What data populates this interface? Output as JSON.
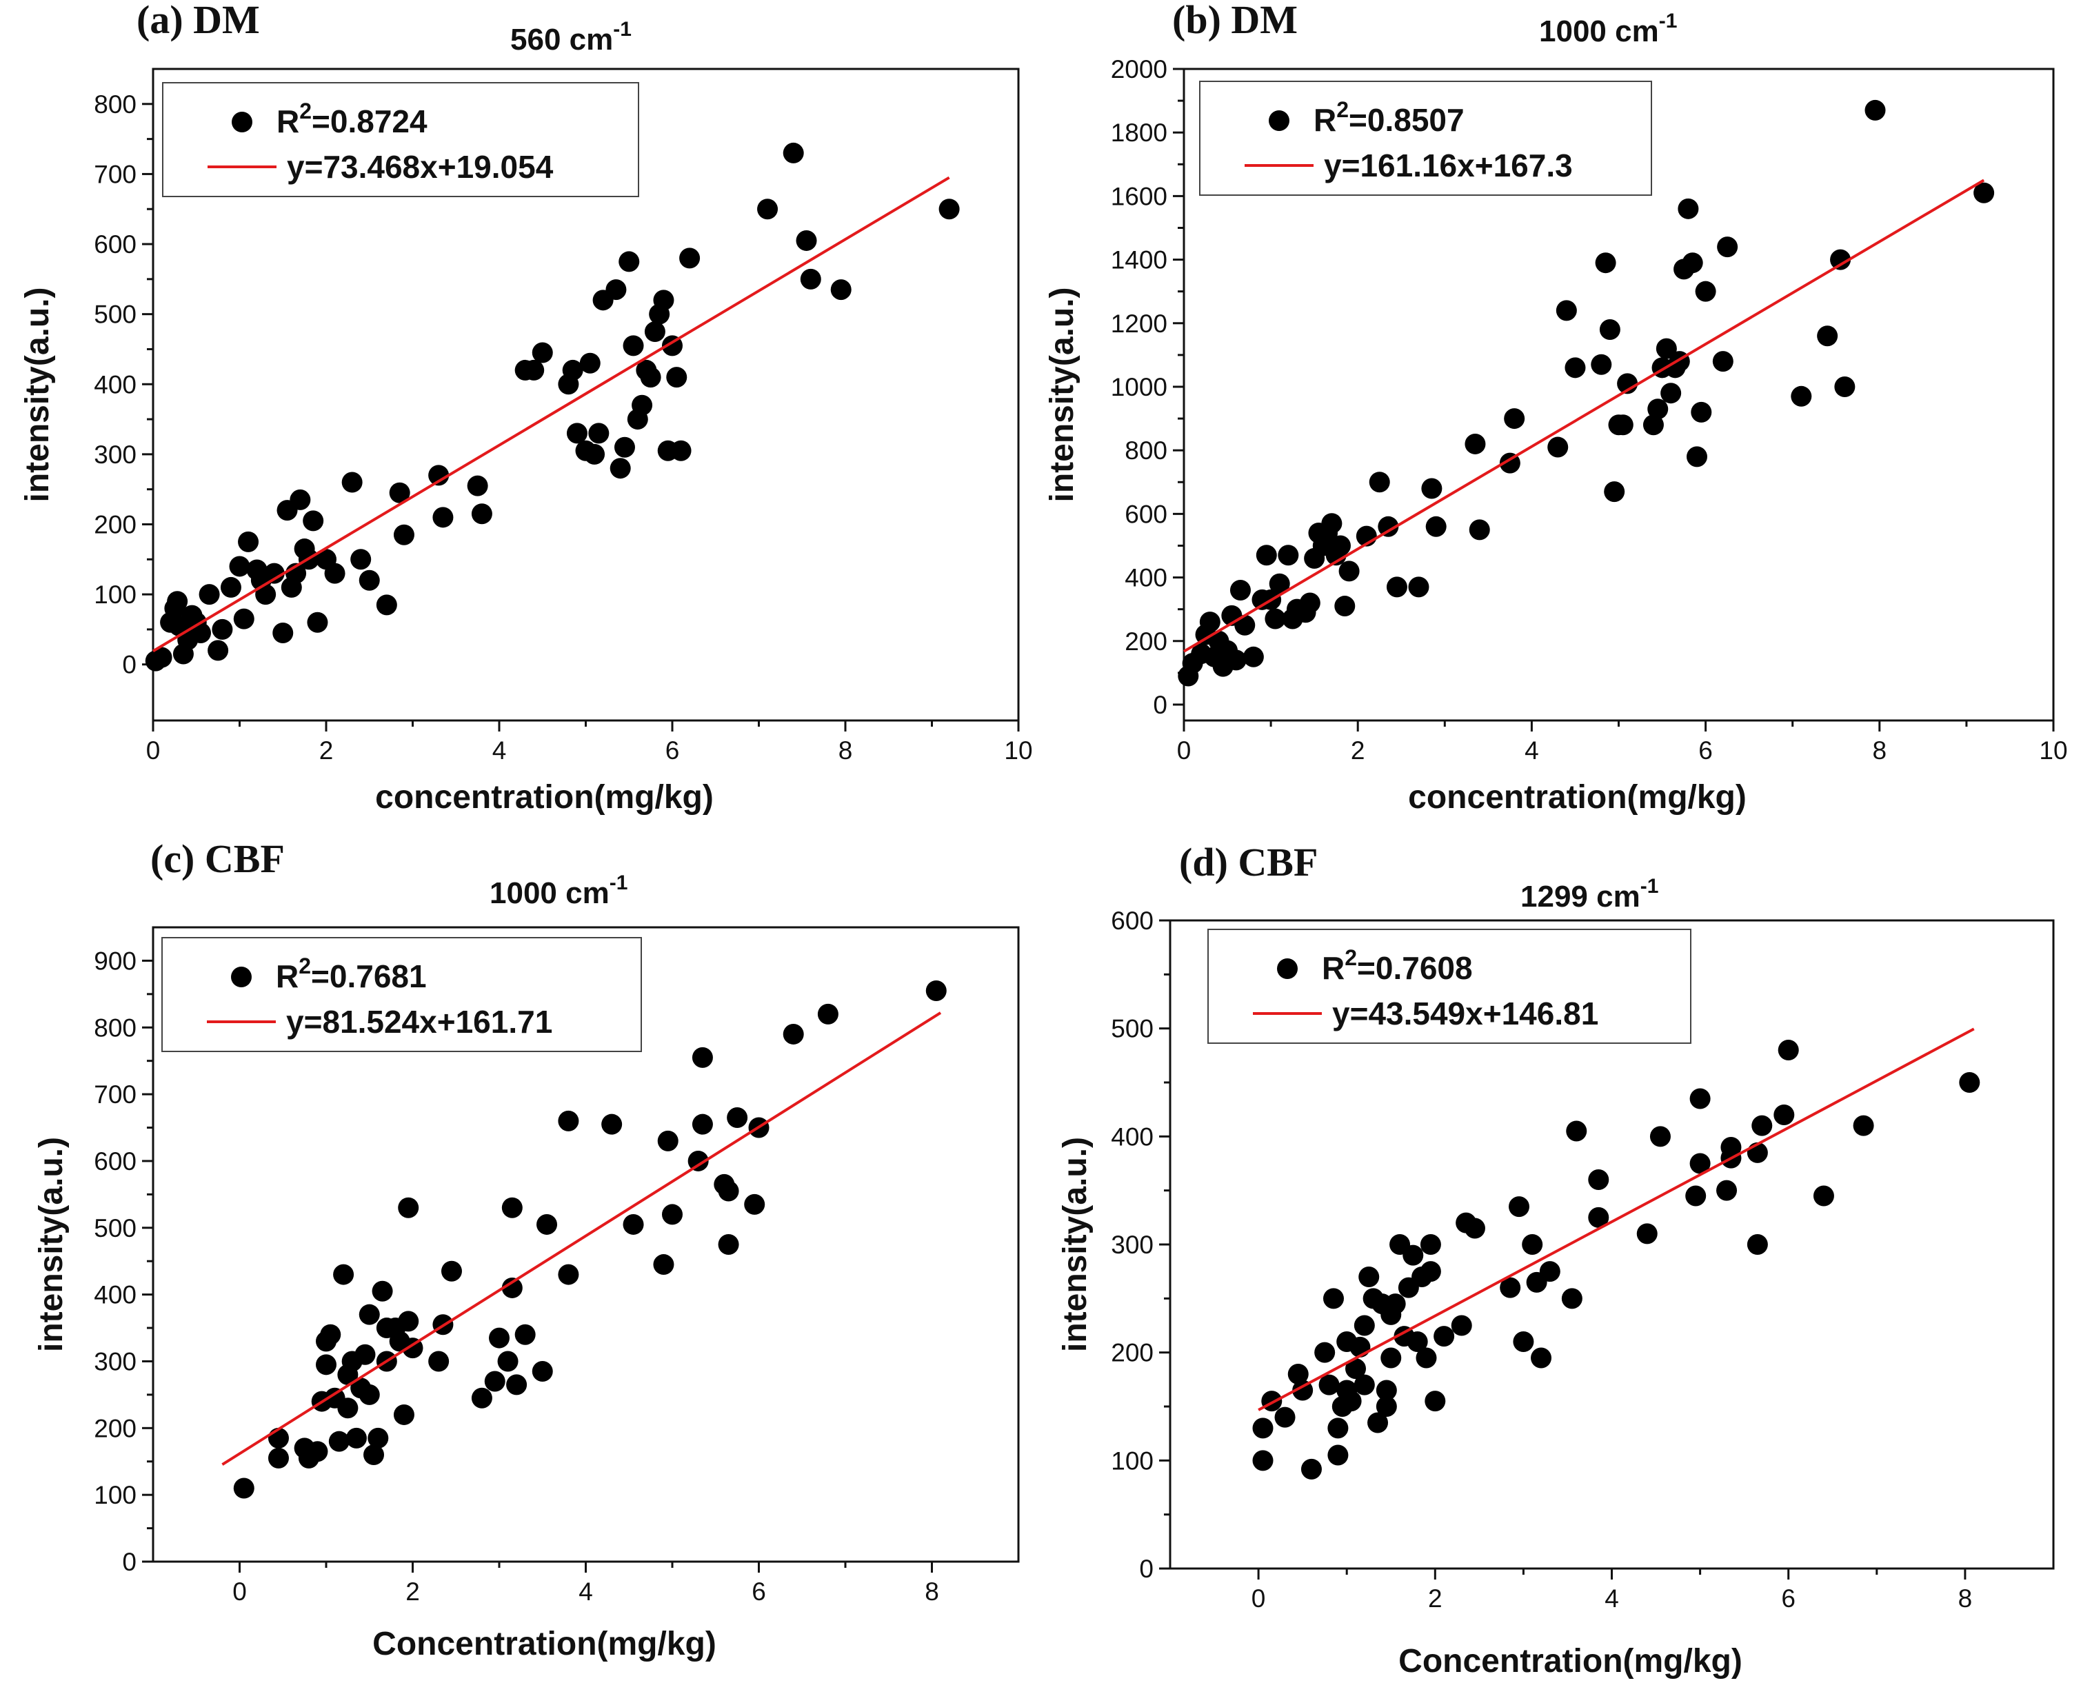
{
  "colors": {
    "points": "#000000",
    "fit_line": "#e31a1c",
    "axes": "#111111",
    "background": "#ffffff"
  },
  "chart_data": [
    {
      "type": "scatter",
      "panel_label": "(a) DM",
      "wavenumber_text": "560 cm",
      "wavenumber_exp": "-1",
      "xlabel": "concentration(mg/kg)",
      "ylabel": "intensity(a.u.)",
      "xlim": [
        0,
        10
      ],
      "ylim": [
        -80,
        850
      ],
      "xticks": [
        0,
        2,
        4,
        6,
        8,
        10
      ],
      "yticks": [
        0,
        100,
        200,
        300,
        400,
        500,
        600,
        700,
        800
      ],
      "legend_position": "top-left",
      "legend": {
        "r2_prefix": "R",
        "r2_exp": "2",
        "r2_value": "=0.8724",
        "equation": "y=73.468x+19.054"
      },
      "fit": {
        "slope": 73.468,
        "intercept": 19.054,
        "x_range": [
          0,
          9.2
        ]
      },
      "points": [
        [
          0.03,
          5
        ],
        [
          0.1,
          10
        ],
        [
          0.2,
          60
        ],
        [
          0.25,
          80
        ],
        [
          0.28,
          90
        ],
        [
          0.3,
          55
        ],
        [
          0.35,
          15
        ],
        [
          0.4,
          35
        ],
        [
          0.45,
          70
        ],
        [
          0.5,
          60
        ],
        [
          0.55,
          45
        ],
        [
          0.65,
          100
        ],
        [
          0.75,
          20
        ],
        [
          0.8,
          50
        ],
        [
          0.9,
          110
        ],
        [
          1.0,
          140
        ],
        [
          1.05,
          65
        ],
        [
          1.1,
          175
        ],
        [
          1.2,
          135
        ],
        [
          1.25,
          120
        ],
        [
          1.3,
          100
        ],
        [
          1.4,
          130
        ],
        [
          1.5,
          45
        ],
        [
          1.55,
          220
        ],
        [
          1.6,
          110
        ],
        [
          1.65,
          130
        ],
        [
          1.7,
          235
        ],
        [
          1.75,
          165
        ],
        [
          1.8,
          150
        ],
        [
          1.85,
          205
        ],
        [
          1.9,
          60
        ],
        [
          2.0,
          150
        ],
        [
          2.1,
          130
        ],
        [
          2.3,
          260
        ],
        [
          2.4,
          150
        ],
        [
          2.5,
          120
        ],
        [
          2.7,
          85
        ],
        [
          2.85,
          245
        ],
        [
          2.9,
          185
        ],
        [
          3.3,
          270
        ],
        [
          3.35,
          210
        ],
        [
          3.75,
          255
        ],
        [
          3.8,
          215
        ],
        [
          4.3,
          420
        ],
        [
          4.4,
          420
        ],
        [
          4.5,
          445
        ],
        [
          4.8,
          400
        ],
        [
          4.85,
          420
        ],
        [
          4.9,
          330
        ],
        [
          5.0,
          305
        ],
        [
          5.05,
          430
        ],
        [
          5.1,
          300
        ],
        [
          5.15,
          330
        ],
        [
          5.2,
          520
        ],
        [
          5.35,
          535
        ],
        [
          5.4,
          280
        ],
        [
          5.45,
          310
        ],
        [
          5.5,
          575
        ],
        [
          5.55,
          455
        ],
        [
          5.6,
          350
        ],
        [
          5.65,
          370
        ],
        [
          5.7,
          420
        ],
        [
          5.75,
          410
        ],
        [
          5.8,
          475
        ],
        [
          5.85,
          500
        ],
        [
          5.9,
          520
        ],
        [
          5.95,
          305
        ],
        [
          6.0,
          455
        ],
        [
          6.05,
          410
        ],
        [
          6.1,
          305
        ],
        [
          6.2,
          580
        ],
        [
          7.1,
          650
        ],
        [
          7.4,
          730
        ],
        [
          7.55,
          605
        ],
        [
          7.6,
          550
        ],
        [
          7.95,
          535
        ],
        [
          9.2,
          650
        ]
      ]
    },
    {
      "type": "scatter",
      "panel_label": "(b) DM",
      "wavenumber_text": "1000 cm",
      "wavenumber_exp": "-1",
      "xlabel": "concentration(mg/kg)",
      "ylabel": "intensity(a.u.)",
      "xlim": [
        0,
        10
      ],
      "ylim": [
        -50,
        2000
      ],
      "xticks": [
        0,
        2,
        4,
        6,
        8,
        10
      ],
      "yticks": [
        0,
        200,
        400,
        600,
        800,
        1000,
        1200,
        1400,
        1600,
        1800,
        2000
      ],
      "legend_position": "top-left",
      "legend": {
        "r2_prefix": "R",
        "r2_exp": "2",
        "r2_value": "=0.8507",
        "equation": "y=161.16x+167.3"
      },
      "fit": {
        "slope": 161.16,
        "intercept": 167.3,
        "x_range": [
          0,
          9.2
        ]
      },
      "points": [
        [
          0.05,
          90
        ],
        [
          0.1,
          130
        ],
        [
          0.2,
          160
        ],
        [
          0.25,
          220
        ],
        [
          0.3,
          260
        ],
        [
          0.35,
          150
        ],
        [
          0.4,
          200
        ],
        [
          0.45,
          120
        ],
        [
          0.5,
          170
        ],
        [
          0.55,
          280
        ],
        [
          0.6,
          140
        ],
        [
          0.65,
          360
        ],
        [
          0.7,
          250
        ],
        [
          0.8,
          150
        ],
        [
          0.9,
          330
        ],
        [
          0.95,
          470
        ],
        [
          1.0,
          330
        ],
        [
          1.05,
          270
        ],
        [
          1.1,
          380
        ],
        [
          1.2,
          470
        ],
        [
          1.25,
          270
        ],
        [
          1.3,
          300
        ],
        [
          1.4,
          290
        ],
        [
          1.45,
          320
        ],
        [
          1.5,
          460
        ],
        [
          1.55,
          540
        ],
        [
          1.6,
          500
        ],
        [
          1.65,
          540
        ],
        [
          1.7,
          570
        ],
        [
          1.75,
          470
        ],
        [
          1.8,
          500
        ],
        [
          1.85,
          310
        ],
        [
          1.9,
          420
        ],
        [
          2.1,
          530
        ],
        [
          2.25,
          700
        ],
        [
          2.35,
          560
        ],
        [
          2.45,
          370
        ],
        [
          2.7,
          370
        ],
        [
          2.85,
          680
        ],
        [
          2.9,
          560
        ],
        [
          3.35,
          820
        ],
        [
          3.4,
          550
        ],
        [
          3.75,
          760
        ],
        [
          3.8,
          900
        ],
        [
          4.3,
          810
        ],
        [
          4.4,
          1240
        ],
        [
          4.5,
          1060
        ],
        [
          4.8,
          1070
        ],
        [
          4.85,
          1390
        ],
        [
          4.9,
          1180
        ],
        [
          4.95,
          670
        ],
        [
          5.0,
          880
        ],
        [
          5.05,
          880
        ],
        [
          5.1,
          1010
        ],
        [
          5.4,
          880
        ],
        [
          5.45,
          930
        ],
        [
          5.5,
          1060
        ],
        [
          5.55,
          1120
        ],
        [
          5.6,
          980
        ],
        [
          5.65,
          1060
        ],
        [
          5.7,
          1080
        ],
        [
          5.75,
          1370
        ],
        [
          5.8,
          1560
        ],
        [
          5.85,
          1390
        ],
        [
          5.9,
          780
        ],
        [
          5.95,
          920
        ],
        [
          6.0,
          1300
        ],
        [
          6.2,
          1080
        ],
        [
          6.25,
          1440
        ],
        [
          7.1,
          970
        ],
        [
          7.4,
          1160
        ],
        [
          7.55,
          1400
        ],
        [
          7.6,
          1000
        ],
        [
          7.95,
          1870
        ],
        [
          9.2,
          1610
        ]
      ]
    },
    {
      "type": "scatter",
      "panel_label": "(c) CBF",
      "wavenumber_text": "1000 cm",
      "wavenumber_exp": "-1",
      "xlabel": "Concentration(mg/kg)",
      "ylabel": "intensity(a.u.)",
      "xlim": [
        -1,
        9
      ],
      "ylim": [
        0,
        950
      ],
      "xticks": [
        0,
        2,
        4,
        6,
        8
      ],
      "yticks": [
        0,
        100,
        200,
        300,
        400,
        500,
        600,
        700,
        800,
        900
      ],
      "legend_position": "top-left",
      "legend": {
        "r2_prefix": "R",
        "r2_exp": "2",
        "r2_value": "=0.7681",
        "equation": "y=81.524x+161.71"
      },
      "fit": {
        "slope": 81.524,
        "intercept": 161.71,
        "x_range": [
          -0.2,
          8.1
        ]
      },
      "points": [
        [
          0.05,
          110
        ],
        [
          0.45,
          155
        ],
        [
          0.45,
          185
        ],
        [
          0.75,
          170
        ],
        [
          0.8,
          155
        ],
        [
          0.9,
          165
        ],
        [
          0.95,
          240
        ],
        [
          1.0,
          295
        ],
        [
          1.0,
          330
        ],
        [
          1.05,
          340
        ],
        [
          1.1,
          245
        ],
        [
          1.15,
          180
        ],
        [
          1.2,
          430
        ],
        [
          1.25,
          280
        ],
        [
          1.25,
          230
        ],
        [
          1.3,
          300
        ],
        [
          1.35,
          185
        ],
        [
          1.4,
          260
        ],
        [
          1.45,
          310
        ],
        [
          1.5,
          370
        ],
        [
          1.5,
          250
        ],
        [
          1.55,
          160
        ],
        [
          1.6,
          185
        ],
        [
          1.65,
          405
        ],
        [
          1.7,
          300
        ],
        [
          1.7,
          350
        ],
        [
          1.8,
          350
        ],
        [
          1.85,
          330
        ],
        [
          1.9,
          220
        ],
        [
          1.95,
          530
        ],
        [
          1.95,
          360
        ],
        [
          2.0,
          320
        ],
        [
          2.3,
          300
        ],
        [
          2.35,
          355
        ],
        [
          2.45,
          435
        ],
        [
          2.8,
          245
        ],
        [
          2.95,
          270
        ],
        [
          3.0,
          335
        ],
        [
          3.1,
          300
        ],
        [
          3.15,
          410
        ],
        [
          3.15,
          530
        ],
        [
          3.2,
          265
        ],
        [
          3.3,
          340
        ],
        [
          3.5,
          285
        ],
        [
          3.55,
          505
        ],
        [
          3.8,
          660
        ],
        [
          3.8,
          430
        ],
        [
          4.3,
          655
        ],
        [
          4.55,
          505
        ],
        [
          4.9,
          445
        ],
        [
          4.95,
          630
        ],
        [
          5.0,
          520
        ],
        [
          5.3,
          600
        ],
        [
          5.35,
          655
        ],
        [
          5.35,
          755
        ],
        [
          5.6,
          565
        ],
        [
          5.65,
          475
        ],
        [
          5.65,
          555
        ],
        [
          5.75,
          665
        ],
        [
          5.95,
          535
        ],
        [
          6.0,
          650
        ],
        [
          6.4,
          790
        ],
        [
          6.8,
          820
        ],
        [
          8.05,
          855
        ]
      ]
    },
    {
      "type": "scatter",
      "panel_label": "(d) CBF",
      "wavenumber_text": "1299 cm",
      "wavenumber_exp": "-1",
      "xlabel": "Concentration(mg/kg)",
      "ylabel": "intensity(a.u.)",
      "xlim": [
        -1,
        9
      ],
      "ylim": [
        0,
        600
      ],
      "xticks": [
        0,
        2,
        4,
        6,
        8
      ],
      "yticks": [
        0,
        100,
        200,
        300,
        400,
        500,
        600
      ],
      "legend_position": "top-left",
      "legend": {
        "r2_prefix": "R",
        "r2_exp": "2",
        "r2_value": "=0.7608",
        "equation": "y=43.549x+146.81"
      },
      "fit": {
        "slope": 43.549,
        "intercept": 146.81,
        "x_range": [
          0,
          8.1
        ]
      },
      "points": [
        [
          0.05,
          100
        ],
        [
          0.05,
          130
        ],
        [
          0.15,
          155
        ],
        [
          0.3,
          140
        ],
        [
          0.45,
          180
        ],
        [
          0.5,
          165
        ],
        [
          0.6,
          92
        ],
        [
          0.75,
          200
        ],
        [
          0.8,
          170
        ],
        [
          0.85,
          250
        ],
        [
          0.9,
          105
        ],
        [
          0.9,
          130
        ],
        [
          0.95,
          150
        ],
        [
          1.0,
          210
        ],
        [
          1.0,
          165
        ],
        [
          1.05,
          155
        ],
        [
          1.1,
          185
        ],
        [
          1.15,
          205
        ],
        [
          1.2,
          225
        ],
        [
          1.2,
          170
        ],
        [
          1.25,
          270
        ],
        [
          1.3,
          250
        ],
        [
          1.35,
          135
        ],
        [
          1.4,
          245
        ],
        [
          1.45,
          165
        ],
        [
          1.45,
          150
        ],
        [
          1.5,
          195
        ],
        [
          1.5,
          235
        ],
        [
          1.55,
          245
        ],
        [
          1.6,
          300
        ],
        [
          1.65,
          215
        ],
        [
          1.7,
          260
        ],
        [
          1.75,
          290
        ],
        [
          1.8,
          210
        ],
        [
          1.85,
          270
        ],
        [
          1.9,
          195
        ],
        [
          1.95,
          300
        ],
        [
          1.95,
          275
        ],
        [
          2.0,
          155
        ],
        [
          2.1,
          215
        ],
        [
          2.3,
          225
        ],
        [
          2.35,
          320
        ],
        [
          2.45,
          315
        ],
        [
          2.85,
          260
        ],
        [
          2.95,
          335
        ],
        [
          3.0,
          210
        ],
        [
          3.1,
          300
        ],
        [
          3.15,
          265
        ],
        [
          3.2,
          195
        ],
        [
          3.3,
          275
        ],
        [
          3.55,
          250
        ],
        [
          3.6,
          405
        ],
        [
          3.85,
          360
        ],
        [
          3.85,
          325
        ],
        [
          4.4,
          310
        ],
        [
          4.55,
          400
        ],
        [
          4.95,
          345
        ],
        [
          5.0,
          375
        ],
        [
          5.0,
          435
        ],
        [
          5.3,
          350
        ],
        [
          5.35,
          390
        ],
        [
          5.35,
          380
        ],
        [
          5.65,
          300
        ],
        [
          5.65,
          385
        ],
        [
          5.7,
          410
        ],
        [
          5.95,
          420
        ],
        [
          6.0,
          480
        ],
        [
          6.4,
          345
        ],
        [
          6.85,
          410
        ],
        [
          8.05,
          450
        ]
      ]
    }
  ]
}
